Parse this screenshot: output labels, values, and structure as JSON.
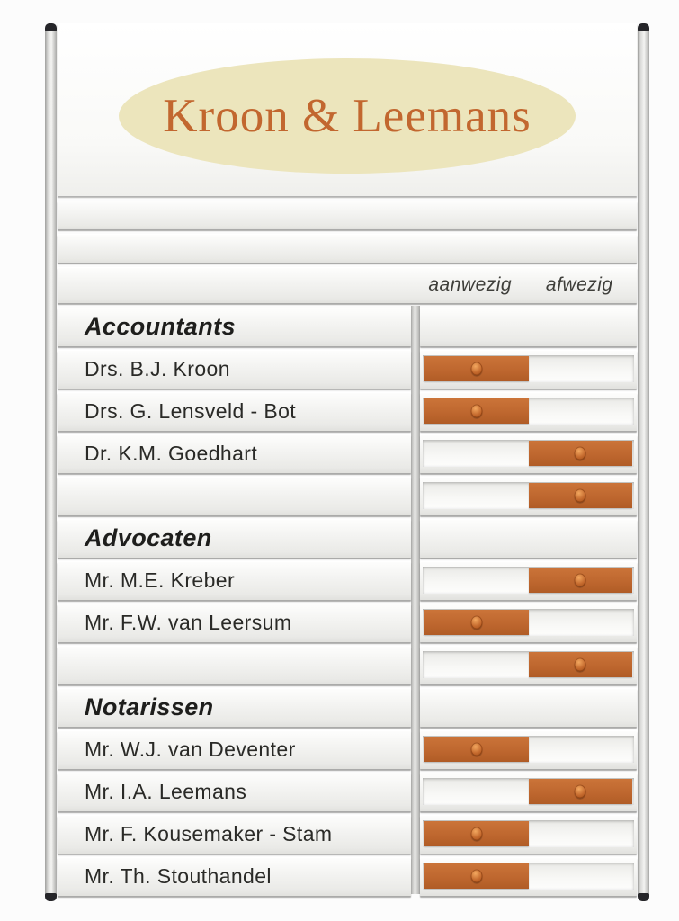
{
  "company": "Kroon & Leemans",
  "columns": {
    "present": "aanwezig",
    "absent": "afwezig"
  },
  "sections": [
    {
      "title": "Accountants",
      "members": [
        {
          "name": "Drs. B.J. Kroon",
          "status": "aanwezig"
        },
        {
          "name": "Drs. G. Lensveld - Bot",
          "status": "aanwezig"
        },
        {
          "name": "Dr. K.M. Goedhart",
          "status": "afwezig"
        },
        {
          "name": "",
          "status": "afwezig"
        }
      ]
    },
    {
      "title": "Advocaten",
      "members": [
        {
          "name": "Mr. M.E. Kreber",
          "status": "afwezig"
        },
        {
          "name": "Mr. F.W. van Leersum",
          "status": "aanwezig"
        },
        {
          "name": "",
          "status": "afwezig"
        }
      ]
    },
    {
      "title": "Notarissen",
      "members": [
        {
          "name": "Mr. W.J. van Deventer",
          "status": "aanwezig"
        },
        {
          "name": "Mr. I.A. Leemans",
          "status": "afwezig"
        },
        {
          "name": "Mr. F. Kousemaker - Stam",
          "status": "aanwezig"
        },
        {
          "name": "Mr. Th. Stouthandel",
          "status": "aanwezig"
        }
      ]
    }
  ],
  "colors": {
    "slider_orange": "#bd662e",
    "logo_ellipse": "#ece5bc",
    "logo_text": "#c2672f",
    "frame_aluminium": "#d9d9d7"
  }
}
